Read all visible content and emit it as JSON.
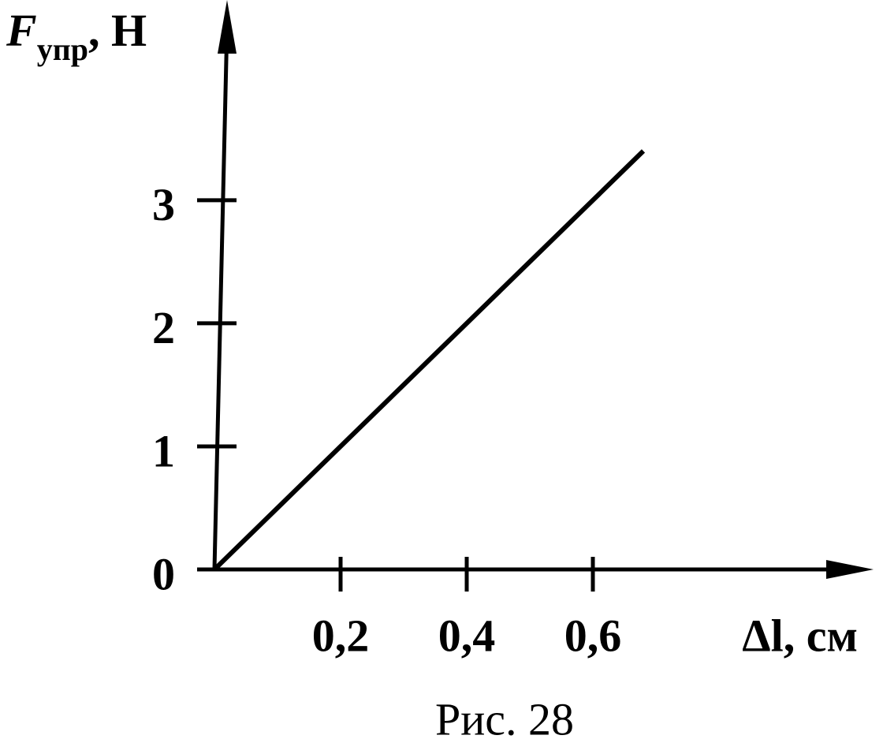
{
  "chart_data": {
    "type": "line",
    "y_label": {
      "symbol": "F",
      "subscript": "упр",
      "unit": ", Н"
    },
    "x_label": "Δl, см",
    "caption": "Рис. 28",
    "x": [
      0,
      0.68
    ],
    "series": [
      {
        "color": "#000000",
        "values": [
          0,
          3.4
        ]
      }
    ],
    "xlim": [
      0,
      1.02
    ],
    "ylim": [
      0,
      4.55
    ],
    "xticks": [
      {
        "value": 0.2,
        "label": "0,2"
      },
      {
        "value": 0.4,
        "label": "0,4"
      },
      {
        "value": 0.6,
        "label": "0,6"
      }
    ],
    "yticks": [
      0,
      1,
      2,
      3
    ],
    "grid": false
  }
}
